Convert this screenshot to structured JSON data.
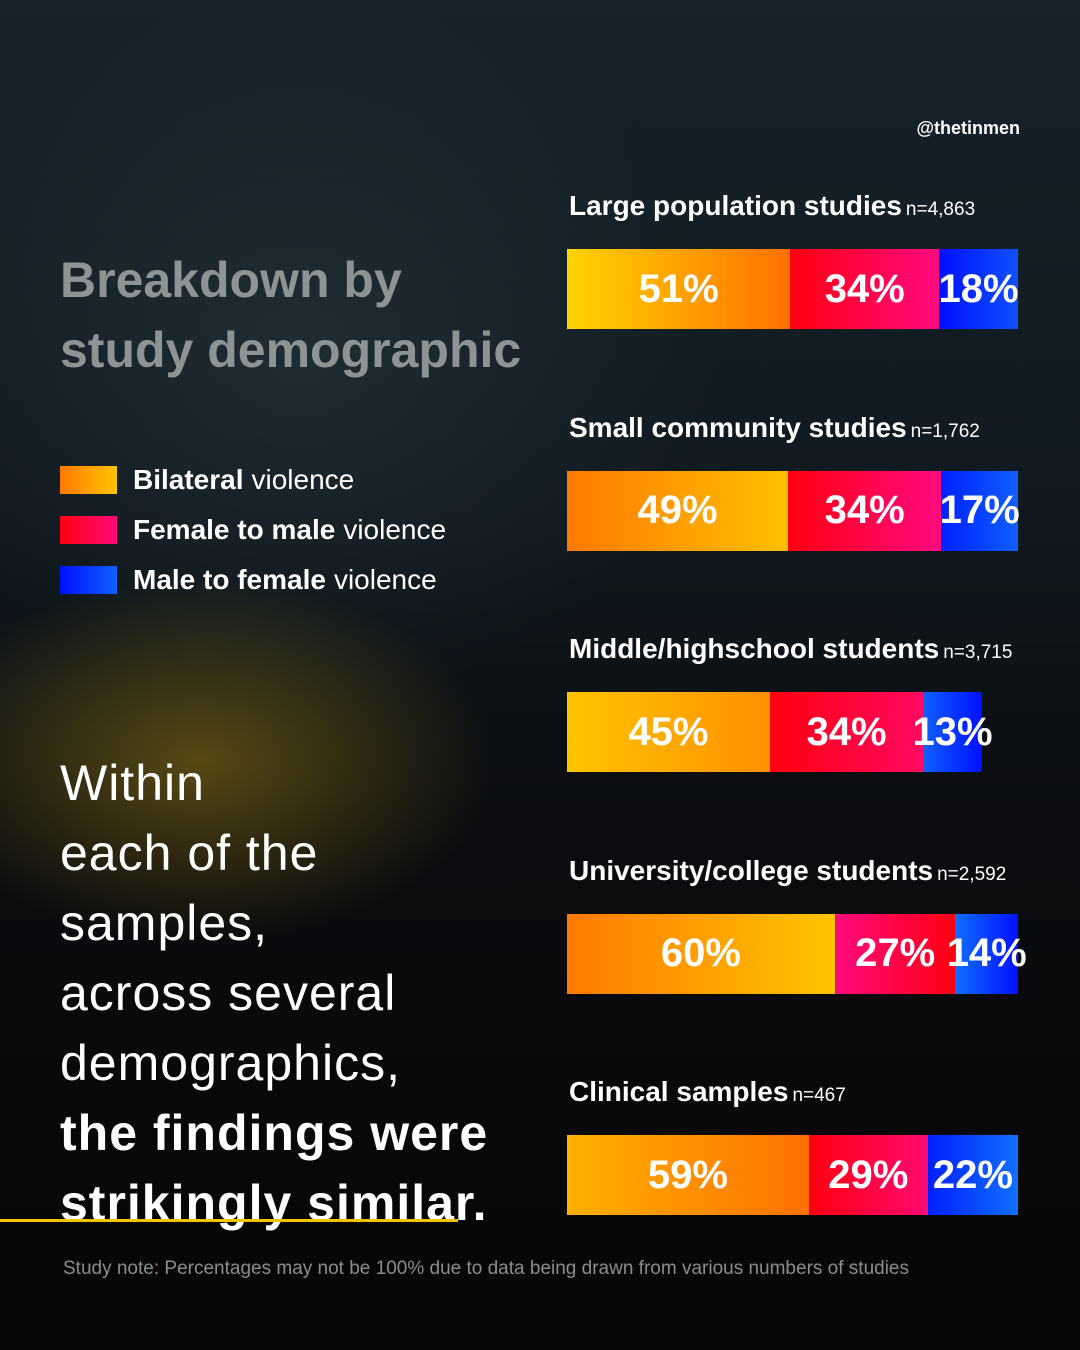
{
  "handle": "@thetinmen",
  "heading": [
    "Breakdown by",
    "study demographic"
  ],
  "legend": [
    {
      "bold": "Bilateral",
      "rest": "violence",
      "color": "#ff9800"
    },
    {
      "bold": "Female to male",
      "rest": "violence",
      "color": "#ff0a4a"
    },
    {
      "bold": "Male to female",
      "rest": "violence",
      "color": "#1040ff"
    }
  ],
  "body_text": {
    "normal": [
      "Within",
      "each of the",
      "samples,",
      "across several",
      "demographics,"
    ],
    "bold": [
      "the findings were",
      "strikingly similar."
    ]
  },
  "note": "Study note: Percentages may not be 100% due to data being drawn from various numbers of studies",
  "chart_data": {
    "type": "bar",
    "orientation": "horizontal-stacked",
    "series_names": [
      "Bilateral violence",
      "Female to male violence",
      "Male to female violence"
    ],
    "colors": [
      "#ff9800",
      "#ff0a4a",
      "#1040ff"
    ],
    "groups": [
      {
        "title": "Large population studies",
        "n": "n=4,863",
        "values": [
          51,
          34,
          18
        ]
      },
      {
        "title": "Small community studies",
        "n": "n=1,762",
        "values": [
          49,
          34,
          17
        ]
      },
      {
        "title": "Middle/highschool students",
        "n": "n=3,715",
        "values": [
          45,
          34,
          13
        ]
      },
      {
        "title": "University/college students",
        "n": "n=2,592",
        "values": [
          60,
          27,
          14
        ]
      },
      {
        "title": "Clinical samples",
        "n": "n=467",
        "values": [
          59,
          29,
          22
        ]
      }
    ],
    "unit": "%"
  }
}
